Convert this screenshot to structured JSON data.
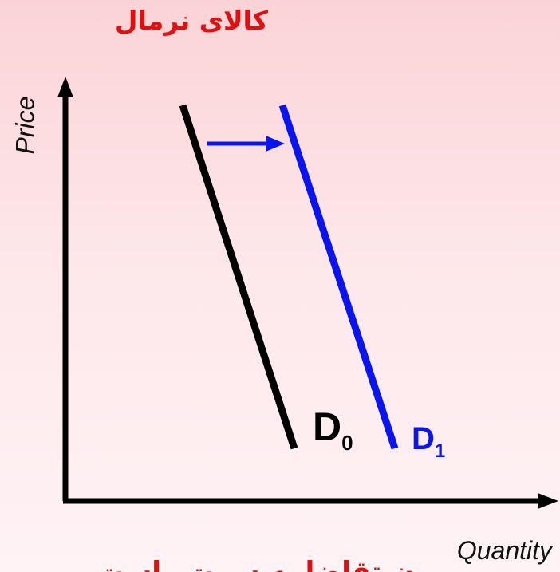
{
  "title": "کالای نرمال",
  "caption": "ن‌ـتقاضا به سمت راست",
  "axes": {
    "x_label": "Quantity",
    "y_label": "Price"
  },
  "curves": [
    {
      "name": "D",
      "subscript": "0",
      "color": "#000000"
    },
    {
      "name": "D",
      "subscript": "1",
      "color": "#0a14f0"
    }
  ],
  "shift": {
    "direction": "right",
    "color": "#0a14f0"
  }
}
